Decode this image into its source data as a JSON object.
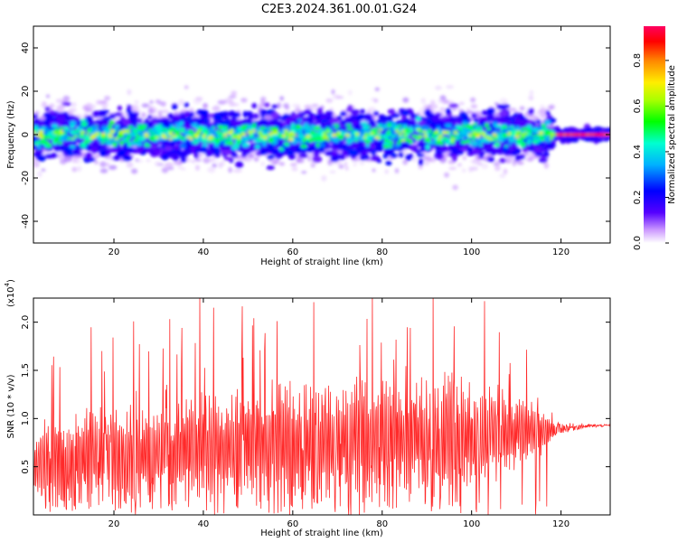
{
  "figure_title": "C2E3.2024.361.00.01.G24",
  "chart_data": [
    {
      "type": "heatmap",
      "title": "C2E3.2024.361.00.01.G24",
      "xlabel": "Height of straight line (km)",
      "ylabel": "Frequency (Hz)",
      "xlim": [
        2,
        131
      ],
      "ylim": [
        -50,
        50
      ],
      "xticks": [
        20,
        40,
        60,
        80,
        100,
        120
      ],
      "xtick_labels": [
        "20",
        "40",
        "60",
        "80",
        "100",
        "120"
      ],
      "yticks": [
        -40,
        -20,
        0,
        20,
        40
      ],
      "ytick_labels": [
        "-40",
        "-20",
        "0",
        "20",
        "40"
      ],
      "colorbar": {
        "label": "Normalized spectral amplitude",
        "range": [
          0,
          0.95
        ],
        "ticks": [
          0,
          0.2,
          0.4,
          0.6,
          0.8
        ],
        "tick_labels": [
          "0.0",
          "0.2",
          "0.4",
          "0.6",
          "0.8"
        ],
        "colors": [
          "#ffffff",
          "#cc99ff",
          "#5500ff",
          "#0000ff",
          "#00b0ff",
          "#00ffd0",
          "#00ff00",
          "#aaff00",
          "#ffee00",
          "#ff8800",
          "#ff0000",
          "#ff0060"
        ]
      },
      "signal_band": {
        "center_hz": 0,
        "core_halfwidth_hz": 3,
        "spread_halfwidth_hz": 9,
        "narrowing_from_km": 118,
        "peak_amplitude_km": [
          118,
          131
        ]
      }
    },
    {
      "type": "line",
      "xlabel": "Height of straight line (km)",
      "ylabel": "SNR (10 * v/v)",
      "y_multiplier_label": "(x10",
      "y_multiplier_exponent": "4",
      "xlim": [
        2,
        131
      ],
      "ylim": [
        0,
        2.25
      ],
      "xticks": [
        20,
        40,
        60,
        80,
        100,
        120
      ],
      "xtick_labels": [
        "20",
        "40",
        "60",
        "80",
        "100",
        "120"
      ],
      "yticks": [
        0.5,
        1.0,
        1.5,
        2.0
      ],
      "ytick_labels": [
        "0.5",
        "1.0",
        "1.5",
        "2.0"
      ],
      "color": "#ff2a2a",
      "series": [
        {
          "x_step_km": 0.1,
          "envelope_x": [
            2,
            5,
            10,
            15,
            20,
            25,
            30,
            35,
            40,
            45,
            50,
            55,
            60,
            65,
            70,
            75,
            80,
            85,
            90,
            95,
            100,
            105,
            110,
            115,
            118,
            120,
            125,
            131
          ],
          "envelope_peak": [
            1.2,
            1.5,
            1.55,
            1.7,
            1.6,
            1.8,
            1.55,
            1.75,
            1.95,
            1.7,
            1.95,
            1.85,
            2.05,
            1.85,
            1.95,
            2.05,
            2.0,
            1.9,
            2.05,
            2.25,
            1.95,
            1.85,
            1.55,
            1.55,
            1.05,
            1.03,
            0.97,
            0.95
          ],
          "envelope_mean": [
            0.55,
            0.55,
            0.58,
            0.6,
            0.62,
            0.62,
            0.64,
            0.66,
            0.68,
            0.7,
            0.72,
            0.72,
            0.75,
            0.75,
            0.78,
            0.78,
            0.8,
            0.8,
            0.82,
            0.82,
            0.82,
            0.84,
            0.85,
            0.86,
            0.88,
            0.9,
            0.92,
            0.93
          ]
        }
      ]
    }
  ]
}
